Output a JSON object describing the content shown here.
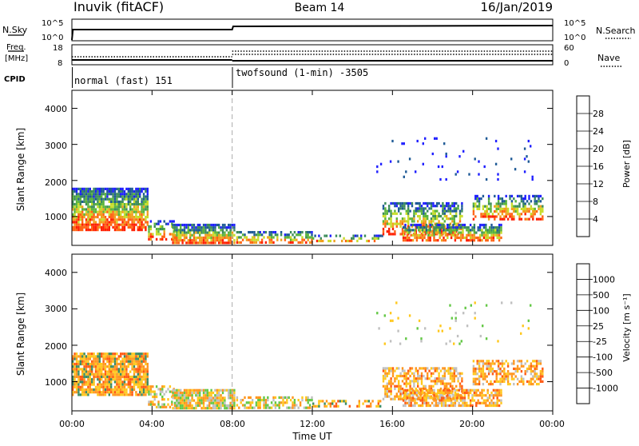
{
  "header": {
    "station": "Inuvik (fitACF)",
    "beam": "Beam 14",
    "date": "16/Jan/2019"
  },
  "strip_labels": {
    "nsky": "N.Sky",
    "freq": "Freq.",
    "mhz": "[MHz]",
    "cpid": "CPID",
    "nsearch": "N.Search",
    "nave": "Nave"
  },
  "nsky_axis": {
    "top": "10^5",
    "bottom": "10^0"
  },
  "freq_axis": {
    "ticks": [
      "18",
      "8"
    ]
  },
  "nave_axis": {
    "ticks": [
      "60",
      "0"
    ]
  },
  "cpid": [
    {
      "start": "00:00",
      "label": "normal (fast) 151"
    },
    {
      "start": "08:00",
      "label": "twofsound (1-min) -3505"
    }
  ],
  "x_axis": {
    "label": "Time UT",
    "ticks": [
      "00:00",
      "04:00",
      "08:00",
      "12:00",
      "16:00",
      "20:00",
      "00:00"
    ],
    "range_hours": [
      0,
      24
    ]
  },
  "chart_data": [
    {
      "type": "heatmap",
      "title": "",
      "ylabel": "Slant Range [km]",
      "yticks": [
        "4000",
        "3000",
        "2000",
        "1000"
      ],
      "ylim": [
        200,
        4500
      ],
      "colorbar_label": "Power [dB]",
      "colorbar_ticks": [
        "28",
        "24",
        "20",
        "16",
        "12",
        "8",
        "4"
      ],
      "colors": [
        "#1e1eff",
        "#1e5a96",
        "#3c8c5a",
        "#5ab43c",
        "#c8dc28",
        "#f0a01e",
        "#ff6414",
        "#ff1e00"
      ],
      "mode_change": "08:00"
    },
    {
      "type": "heatmap",
      "title": "",
      "ylabel": "Slant Range [km]",
      "yticks": [
        "4000",
        "3000",
        "2000",
        "1000"
      ],
      "ylim": [
        200,
        4500
      ],
      "colorbar_label": "Velocity [m s⁻¹]",
      "colorbar_ticks": [
        "1000",
        "500",
        "100",
        "25",
        "-25",
        "-100",
        "-500",
        "-1000"
      ],
      "colors": [
        "#1e28c8",
        "#286ea0",
        "#3c8c64",
        "#64c846",
        "#c0c0c0",
        "#ffc81e",
        "#ff961e",
        "#ff5a14",
        "#ff1e00"
      ],
      "mode_change": "08:00"
    }
  ]
}
